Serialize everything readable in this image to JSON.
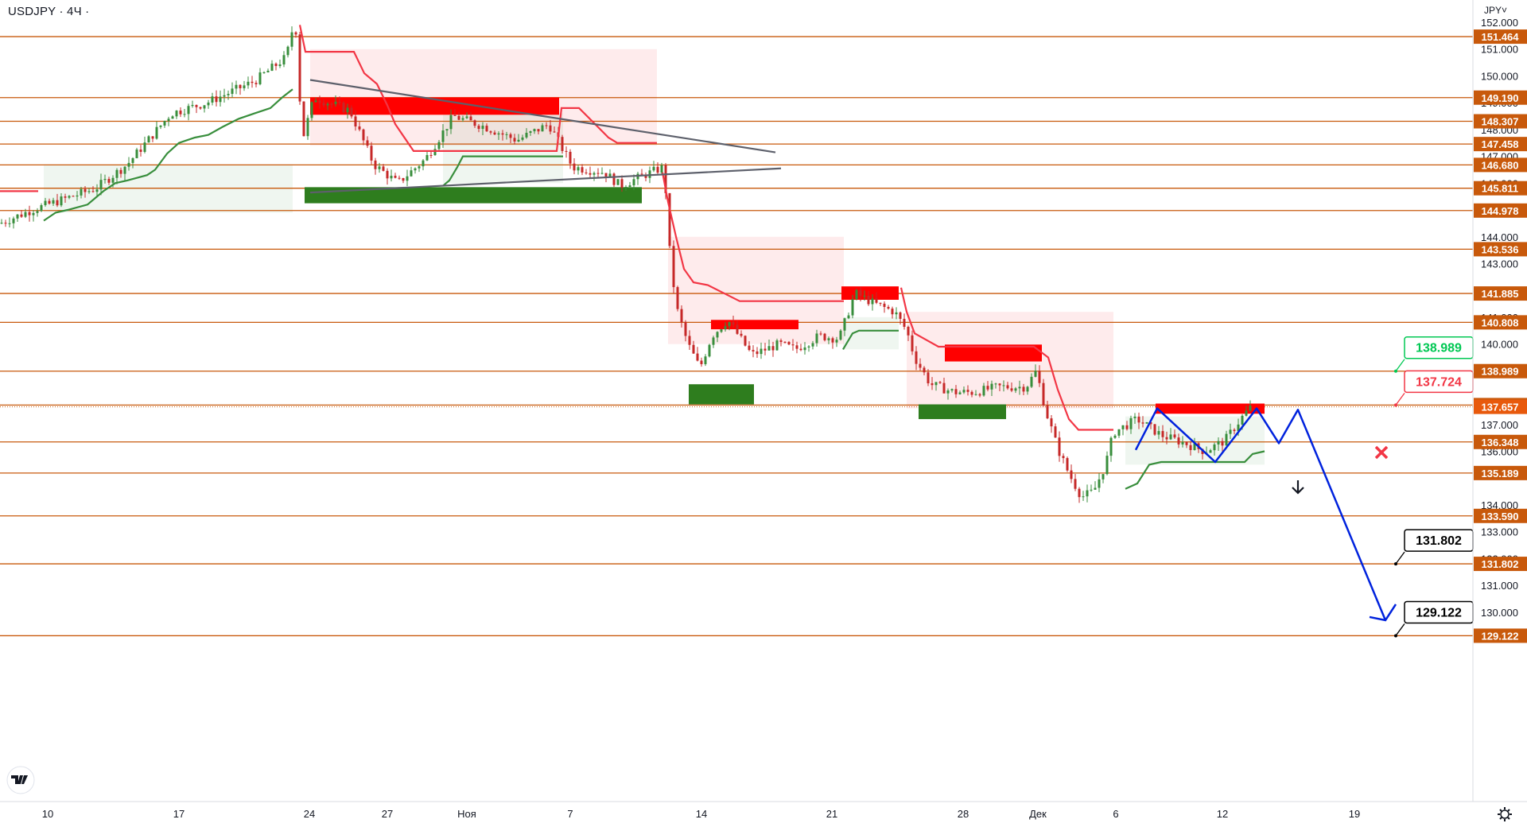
{
  "header": {
    "symbol": "USDJPY · 4Ч ·",
    "currency": "JPY˅"
  },
  "chart_data": {
    "type": "line",
    "x_tick_labels": [
      "10",
      "17",
      "24",
      "27",
      "Ноя",
      "7",
      "14",
      "21",
      "28",
      "Дек",
      "6",
      "12",
      "19"
    ],
    "y_tick_labels": [
      "152.000",
      "151.000",
      "150.000",
      "149.000",
      "148.000",
      "147.000",
      "146.000",
      "145.000",
      "144.000",
      "143.000",
      "142.000",
      "141.000",
      "140.000",
      "139.000",
      "137.000",
      "136.000",
      "134.000",
      "133.000",
      "132.000",
      "131.000",
      "130.000"
    ],
    "ylim": [
      128.6,
      152.4
    ],
    "levels": [
      {
        "price": 151.464,
        "label": "151.464"
      },
      {
        "price": 149.19,
        "label": "149.190"
      },
      {
        "price": 148.307,
        "label": "148.307"
      },
      {
        "price": 147.458,
        "label": "147.458"
      },
      {
        "price": 146.68,
        "label": "146.680"
      },
      {
        "price": 145.811,
        "label": "145.811"
      },
      {
        "price": 144.978,
        "label": "144.978"
      },
      {
        "price": 143.536,
        "label": "143.536"
      },
      {
        "price": 141.885,
        "label": "141.885"
      },
      {
        "price": 140.808,
        "label": "140.808"
      },
      {
        "price": 138.989,
        "label": "138.989"
      },
      {
        "price": 137.724,
        "label": "137.724"
      },
      {
        "price": 136.348,
        "label": "136.348"
      },
      {
        "price": 135.189,
        "label": "135.189"
      },
      {
        "price": 133.59,
        "label": "133.590"
      },
      {
        "price": 131.802,
        "label": "131.802"
      },
      {
        "price": 129.122,
        "label": "129.122"
      }
    ],
    "current_price": {
      "price": 137.657,
      "label": "137.657"
    },
    "callouts": [
      {
        "label": "138.989",
        "price": 138.989,
        "color": "#00c853"
      },
      {
        "label": "137.724",
        "price": 137.724,
        "color": "#f23645"
      },
      {
        "label": "131.802",
        "price": 131.802,
        "color": "#000000"
      },
      {
        "label": "129.122",
        "price": 129.122,
        "color": "#000000"
      }
    ],
    "projection_prices": [
      136.05,
      137.6,
      135.6,
      137.6,
      136.3,
      137.55,
      129.7
    ],
    "zones": [
      {
        "type": "supply",
        "price_top": 149.2,
        "price_bottom": 148.55
      },
      {
        "type": "demand",
        "price_top": 145.85,
        "price_bottom": 145.25
      },
      {
        "type": "supply",
        "price_top": 140.9,
        "price_bottom": 140.55
      },
      {
        "type": "supply",
        "price_top": 142.15,
        "price_bottom": 141.65
      },
      {
        "type": "supply",
        "price_top": 139.98,
        "price_bottom": 139.35
      },
      {
        "type": "demand",
        "price_top": 138.5,
        "price_bottom": 137.75
      },
      {
        "type": "demand",
        "price_top": 137.75,
        "price_bottom": 137.2
      },
      {
        "type": "supply",
        "price_top": 137.78,
        "price_bottom": 137.4
      }
    ],
    "colors": {
      "level": "#c8590b",
      "supply": "#ff0000",
      "demand": "#2e7d1e",
      "supertrend_down": "#f23645",
      "supertrend_up": "#388e3c",
      "projection": "#0022dd",
      "trendline": "#5d606b"
    }
  }
}
